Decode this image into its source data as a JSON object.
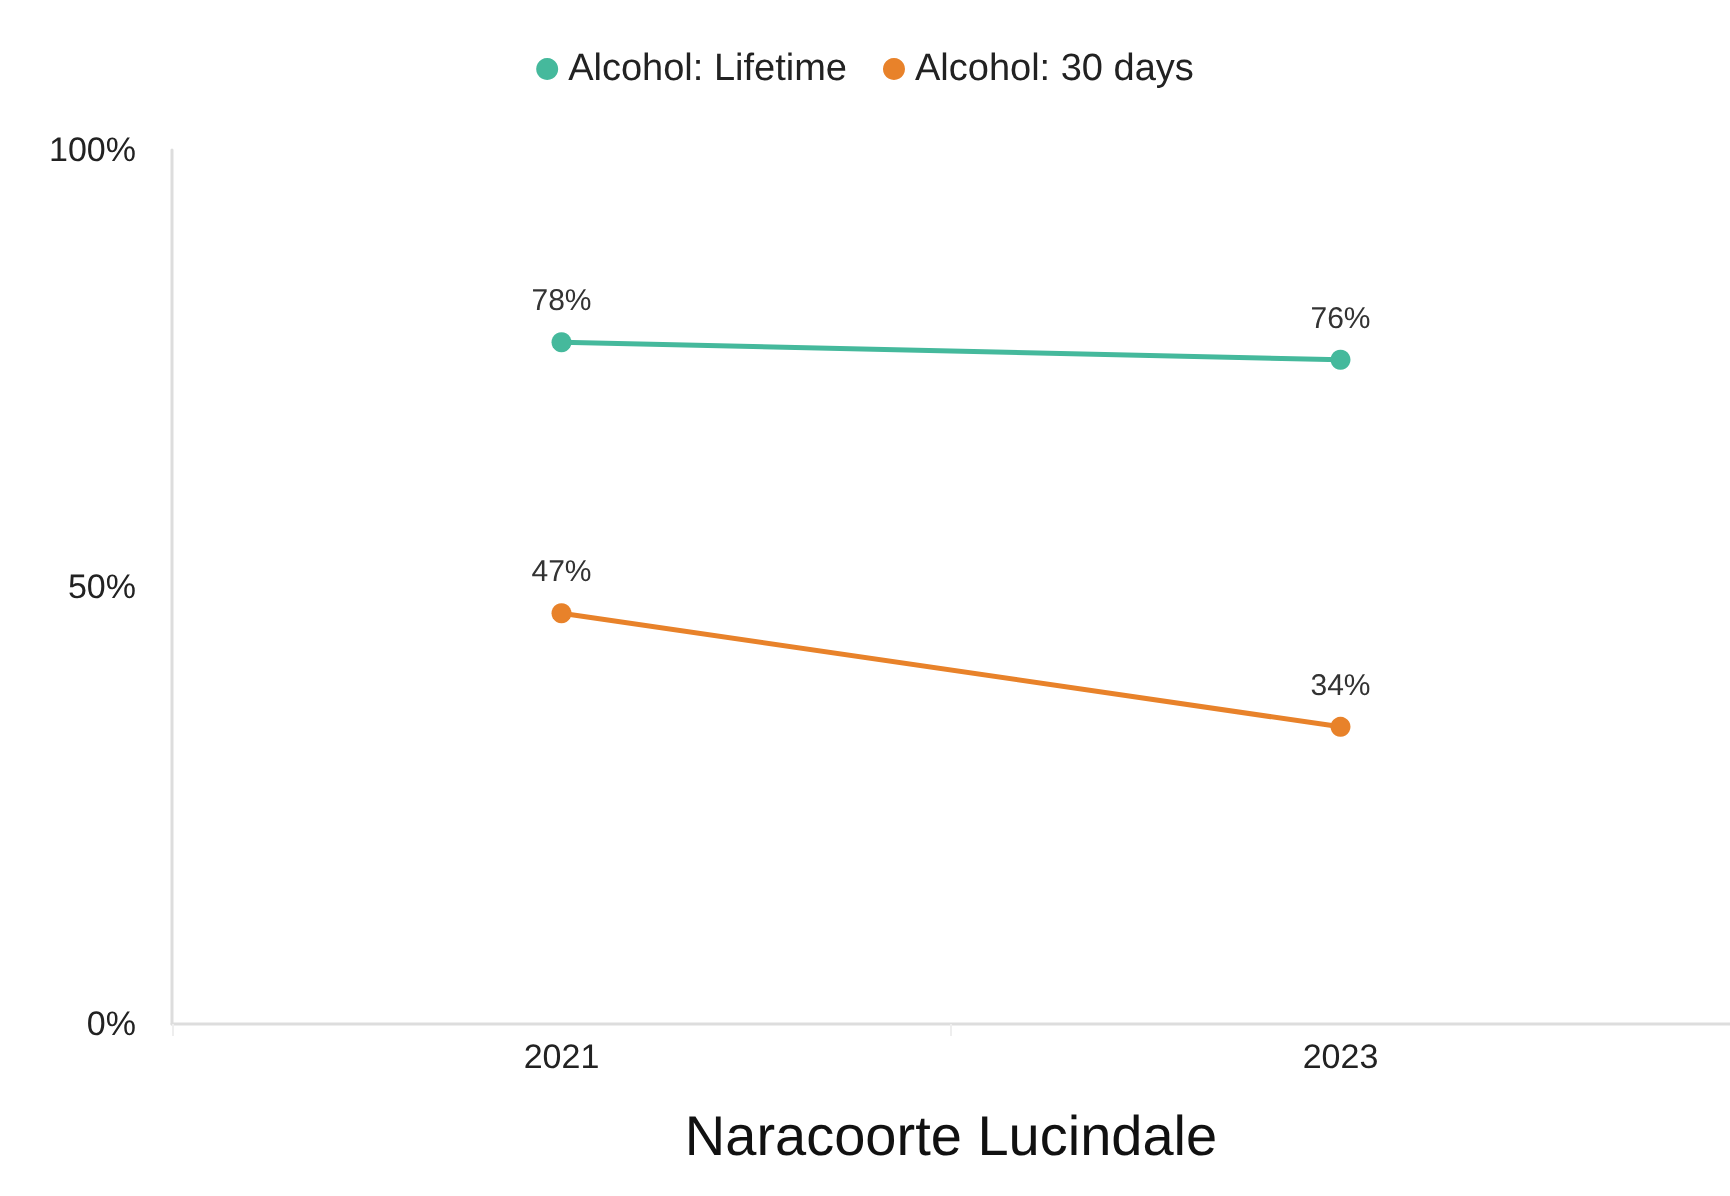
{
  "chart_data": {
    "type": "line",
    "xlabel": "Naracoorte Lucindale",
    "categories": [
      "2021",
      "2023"
    ],
    "series": [
      {
        "name": "Alcohol: Lifetime",
        "color": "#45b99c",
        "values": [
          78,
          76
        ],
        "value_labels": [
          "78%",
          "76%"
        ]
      },
      {
        "name": "Alcohol: 30 days",
        "color": "#e8822a",
        "values": [
          47,
          34
        ],
        "value_labels": [
          "47%",
          "34%"
        ]
      }
    ],
    "ylim": [
      0,
      100
    ],
    "yticks": [
      {
        "value": 0,
        "label": "0%"
      },
      {
        "value": 50,
        "label": "50%"
      },
      {
        "value": 100,
        "label": "100%"
      }
    ],
    "grid": false,
    "legend": "top",
    "marker": "circle",
    "line_style": "solid"
  }
}
